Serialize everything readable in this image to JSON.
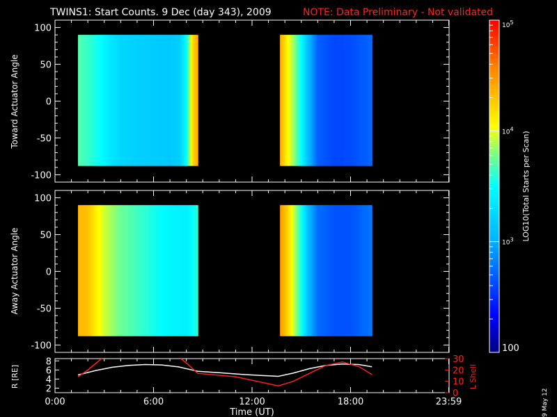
{
  "header": {
    "title": "TWINS1: Start Counts.  9 Dec (day 343), 2009",
    "note": "NOTE: Data Preliminary - Not validated",
    "note_color": "#ff2020"
  },
  "footer": {
    "date_stamp": "9 May 12"
  },
  "colors": {
    "axes": "#ffffff",
    "background": "#000000",
    "r_line": "#ffffff",
    "l_shell_line": "#ff2020"
  },
  "chart_data": [
    {
      "type": "heatmap",
      "panel": "toward",
      "ylabel": "Toward Actuator Angle",
      "ylim": [
        -110,
        110
      ],
      "yticks": [
        100,
        50,
        0,
        -50,
        -100
      ],
      "xlim": [
        0,
        24
      ],
      "colorbar": {
        "label": "LOG10(Total Starts per Scan)",
        "min": 100,
        "max": 100000,
        "ticks": [
          "10^5",
          "10^4",
          "10^3",
          "100"
        ]
      },
      "blocks": [
        {
          "x_start": 1.4,
          "x_end": 8.7,
          "y_min": -88,
          "y_max": 90,
          "profile": [
            [
              1.4,
              3.7
            ],
            [
              1.8,
              3.65
            ],
            [
              2.2,
              3.6
            ],
            [
              2.8,
              3.5
            ],
            [
              3.4,
              3.35
            ],
            [
              4.0,
              3.25
            ],
            [
              5.0,
              3.2
            ],
            [
              6.0,
              3.18
            ],
            [
              7.0,
              3.15
            ],
            [
              7.6,
              3.2
            ],
            [
              8.0,
              3.5
            ],
            [
              8.4,
              4.2
            ],
            [
              8.7,
              4.4
            ]
          ]
        },
        {
          "x_start": 13.7,
          "x_end": 19.3,
          "y_min": -88,
          "y_max": 90,
          "profile": [
            [
              13.7,
              4.4
            ],
            [
              14.2,
              4.05
            ],
            [
              14.6,
              3.8
            ],
            [
              15.0,
              3.5
            ],
            [
              15.4,
              3.1
            ],
            [
              16.0,
              2.7
            ],
            [
              17.0,
              2.6
            ],
            [
              18.0,
              2.62
            ],
            [
              19.0,
              2.7
            ],
            [
              19.3,
              2.75
            ]
          ]
        }
      ]
    },
    {
      "type": "heatmap",
      "panel": "away",
      "ylabel": "Away Actuator Angle",
      "ylim": [
        -110,
        110
      ],
      "yticks": [
        100,
        50,
        0,
        -50,
        -100
      ],
      "xlim": [
        0,
        24
      ],
      "blocks": [
        {
          "x_start": 1.4,
          "x_end": 8.7,
          "y_min": -88,
          "y_max": 90,
          "profile": [
            [
              1.4,
              4.35
            ],
            [
              2.0,
              4.3
            ],
            [
              2.5,
              4.1
            ],
            [
              3.0,
              3.95
            ],
            [
              4.0,
              3.75
            ],
            [
              5.0,
              3.65
            ],
            [
              6.0,
              3.55
            ],
            [
              7.0,
              3.45
            ],
            [
              8.0,
              3.4
            ],
            [
              8.7,
              3.6
            ]
          ]
        },
        {
          "x_start": 13.7,
          "x_end": 19.3,
          "y_min": -88,
          "y_max": 90,
          "profile": [
            [
              13.7,
              4.5
            ],
            [
              14.2,
              4.2
            ],
            [
              14.6,
              3.9
            ],
            [
              15.0,
              3.55
            ],
            [
              15.4,
              3.1
            ],
            [
              16.0,
              2.75
            ],
            [
              17.0,
              2.65
            ],
            [
              18.0,
              2.65
            ],
            [
              19.0,
              2.75
            ],
            [
              19.3,
              2.8
            ]
          ]
        }
      ]
    },
    {
      "type": "line",
      "panel": "orbit",
      "xlabel": "Time (UT)",
      "xlim": [
        0,
        24
      ],
      "xticks": [
        {
          "value": 0,
          "label": "0:00"
        },
        {
          "value": 6,
          "label": "6:00"
        },
        {
          "value": 12,
          "label": "12:00"
        },
        {
          "value": 18,
          "label": "18:00"
        },
        {
          "value": 23.98,
          "label": "23:59"
        }
      ],
      "ylabel": "R [RE]",
      "ylim": [
        1,
        8.5
      ],
      "yticks": [
        2,
        4,
        6,
        8
      ],
      "y2label": "L Shell",
      "y2lim": [
        0,
        30
      ],
      "y2ticks": [
        0,
        10,
        20,
        30
      ],
      "series": [
        {
          "name": "R [RE]",
          "axis": "left",
          "color": "#ffffff",
          "x": [
            1.4,
            2.5,
            3.5,
            4.5,
            5.5,
            6.5,
            7.5,
            8.7,
            10.0,
            11.5,
            13.6,
            14.5,
            15.5,
            16.5,
            17.5,
            18.5,
            19.3
          ],
          "y": [
            4.9,
            5.9,
            6.6,
            7.0,
            7.2,
            7.1,
            6.7,
            5.7,
            5.4,
            5.0,
            4.6,
            5.3,
            6.3,
            7.0,
            7.3,
            7.2,
            6.7
          ]
        },
        {
          "name": "L Shell",
          "axis": "right",
          "color": "#ff2020",
          "x": [
            1.4,
            2.0,
            2.5,
            3.0,
            3.3,
            7.0,
            7.5,
            8.0,
            8.7,
            11.0,
            13.6,
            14.5,
            15.5,
            16.5,
            17.5,
            18.5,
            19.3
          ],
          "y": [
            14,
            20,
            26,
            32,
            40,
            40,
            32,
            26,
            17,
            14,
            6,
            10,
            17,
            24,
            27,
            23,
            16
          ]
        }
      ]
    }
  ]
}
